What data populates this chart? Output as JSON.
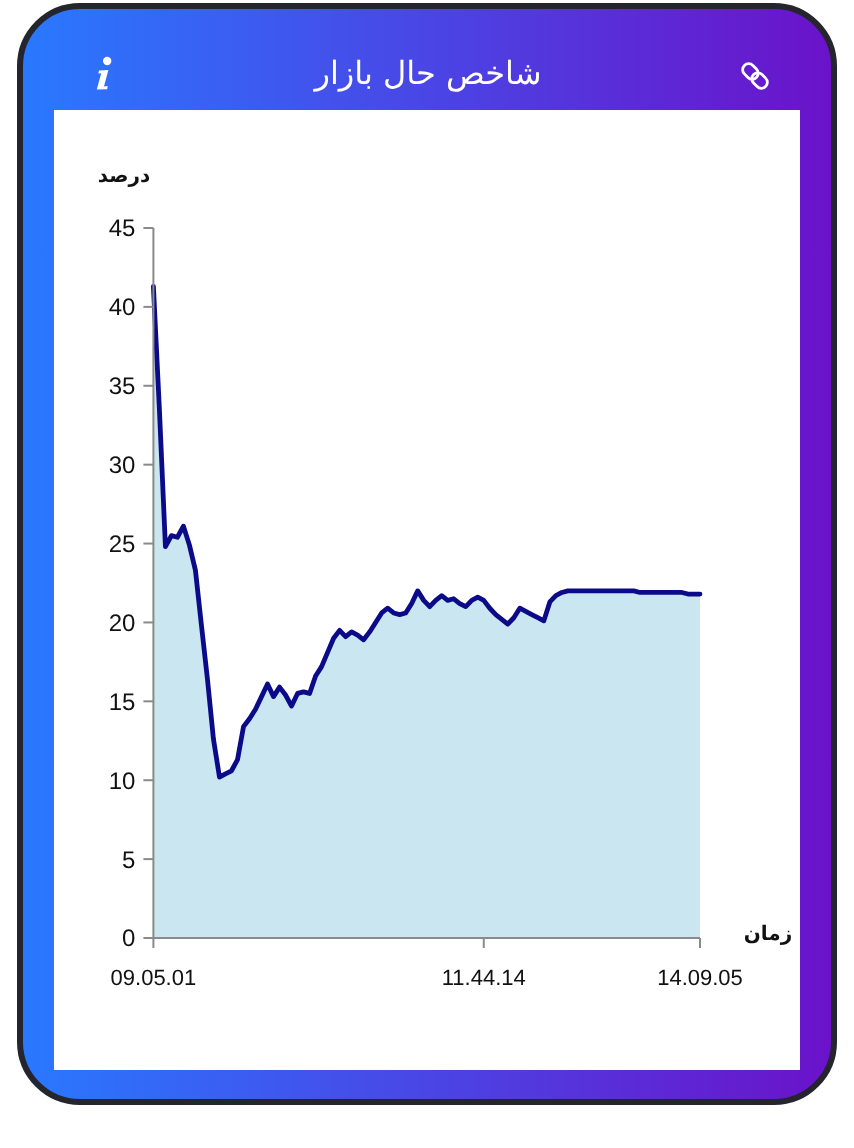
{
  "chart_data": {
    "type": "area",
    "title": "شاخص حال بازار",
    "xlabel": "زمان",
    "ylabel": "درصد",
    "categories": [
      "09.05.01",
      null,
      null,
      null,
      null,
      null,
      null,
      null,
      null,
      null,
      null,
      null,
      null,
      null,
      null,
      null,
      null,
      null,
      null,
      null,
      null,
      null,
      null,
      null,
      null,
      null,
      null,
      null,
      null,
      null,
      null,
      null,
      null,
      null,
      null,
      null,
      null,
      null,
      null,
      null,
      null,
      null,
      null,
      null,
      null,
      null,
      null,
      null,
      null,
      null,
      null,
      null,
      null,
      null,
      null,
      "11.44.14",
      null,
      null,
      null,
      null,
      null,
      null,
      null,
      null,
      null,
      null,
      null,
      null,
      null,
      null,
      null,
      null,
      null,
      null,
      null,
      null,
      null,
      null,
      null,
      null,
      null,
      null,
      null,
      null,
      null,
      null,
      null,
      null,
      null,
      null,
      null,
      "14.09.05"
    ],
    "series": [
      {
        "color": "#c9e6f1",
        "values": [
          41.3,
          33.5,
          24.8,
          25.5,
          25.4,
          26.1,
          24.9,
          23.3,
          19.8,
          16.4,
          12.6,
          10.2,
          10.4,
          10.6,
          11.3,
          13.4,
          13.9,
          14.5,
          15.3,
          16.1,
          15.3,
          15.9,
          15.4,
          14.7,
          15.5,
          15.6,
          15.5,
          16.6,
          17.2,
          18.1,
          19.0,
          19.5,
          19.1,
          19.4,
          19.2,
          18.9,
          19.4,
          20.0,
          20.6,
          20.9,
          20.6,
          20.5,
          20.6,
          21.2,
          22.0,
          21.4,
          21.0,
          21.4,
          21.7,
          21.4,
          21.5,
          21.2,
          21.0,
          21.4,
          21.6,
          21.4,
          20.9,
          20.5,
          20.2,
          19.9,
          20.3,
          20.9,
          20.7,
          20.5,
          20.3,
          20.1,
          21.3,
          21.7,
          21.9,
          22.0,
          22.0,
          22.0,
          22.0,
          22.0,
          22.0,
          22.0,
          22.0,
          22.0,
          22.0,
          22.0,
          22.0,
          21.9,
          21.9,
          21.9,
          21.9,
          21.9,
          21.9,
          21.9,
          21.9,
          21.8,
          21.8,
          21.8
        ]
      }
    ],
    "ylim": [
      0,
      45
    ],
    "yticks": [
      0,
      5,
      10,
      15,
      20,
      25,
      30,
      35,
      40,
      45
    ]
  }
}
